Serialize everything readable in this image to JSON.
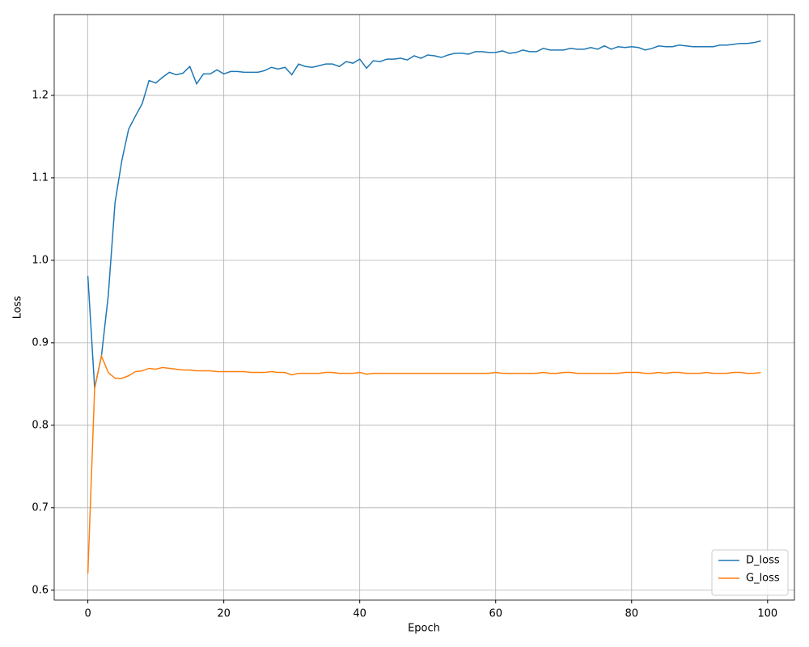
{
  "chart_data": {
    "type": "line",
    "x_label": "Epoch",
    "y_label": "Loss",
    "x": [
      0,
      1,
      2,
      3,
      4,
      5,
      6,
      7,
      8,
      9,
      10,
      11,
      12,
      13,
      14,
      15,
      16,
      17,
      18,
      19,
      20,
      21,
      22,
      23,
      24,
      25,
      26,
      27,
      28,
      29,
      30,
      31,
      32,
      33,
      34,
      35,
      36,
      37,
      38,
      39,
      40,
      41,
      42,
      43,
      44,
      45,
      46,
      47,
      48,
      49,
      50,
      51,
      52,
      53,
      54,
      55,
      56,
      57,
      58,
      59,
      60,
      61,
      62,
      63,
      64,
      65,
      66,
      67,
      68,
      69,
      70,
      71,
      72,
      73,
      74,
      75,
      76,
      77,
      78,
      79,
      80,
      81,
      82,
      83,
      84,
      85,
      86,
      87,
      88,
      89,
      90,
      91,
      92,
      93,
      94,
      95,
      96,
      97,
      98,
      99
    ],
    "series": [
      {
        "name": "D_loss",
        "color": "#1f77b4",
        "values": [
          0.981,
          0.845,
          0.884,
          0.957,
          1.07,
          1.121,
          1.159,
          1.175,
          1.19,
          1.218,
          1.215,
          1.222,
          1.228,
          1.225,
          1.227,
          1.235,
          1.214,
          1.226,
          1.226,
          1.231,
          1.226,
          1.229,
          1.229,
          1.228,
          1.228,
          1.228,
          1.23,
          1.234,
          1.232,
          1.234,
          1.225,
          1.238,
          1.235,
          1.234,
          1.236,
          1.238,
          1.238,
          1.235,
          1.241,
          1.239,
          1.244,
          1.233,
          1.242,
          1.241,
          1.244,
          1.244,
          1.245,
          1.243,
          1.248,
          1.245,
          1.249,
          1.248,
          1.246,
          1.249,
          1.251,
          1.251,
          1.25,
          1.253,
          1.253,
          1.252,
          1.252,
          1.254,
          1.251,
          1.252,
          1.255,
          1.253,
          1.253,
          1.257,
          1.255,
          1.255,
          1.255,
          1.257,
          1.256,
          1.256,
          1.258,
          1.256,
          1.26,
          1.256,
          1.259,
          1.258,
          1.259,
          1.258,
          1.255,
          1.257,
          1.26,
          1.259,
          1.259,
          1.261,
          1.26,
          1.259,
          1.259,
          1.259,
          1.259,
          1.261,
          1.261,
          1.262,
          1.263,
          1.263,
          1.264,
          1.266
        ]
      },
      {
        "name": "G_loss",
        "color": "#ff7f0e",
        "values": [
          0.62,
          0.845,
          0.884,
          0.864,
          0.857,
          0.857,
          0.86,
          0.865,
          0.866,
          0.869,
          0.868,
          0.87,
          0.869,
          0.868,
          0.867,
          0.867,
          0.866,
          0.866,
          0.866,
          0.865,
          0.865,
          0.865,
          0.865,
          0.865,
          0.864,
          0.864,
          0.864,
          0.865,
          0.864,
          0.864,
          0.861,
          0.863,
          0.863,
          0.863,
          0.863,
          0.864,
          0.864,
          0.863,
          0.863,
          0.863,
          0.864,
          0.862,
          0.863,
          0.863,
          0.863,
          0.863,
          0.863,
          0.863,
          0.863,
          0.863,
          0.863,
          0.863,
          0.863,
          0.863,
          0.863,
          0.863,
          0.863,
          0.863,
          0.863,
          0.863,
          0.864,
          0.863,
          0.863,
          0.863,
          0.863,
          0.863,
          0.863,
          0.864,
          0.863,
          0.863,
          0.864,
          0.864,
          0.863,
          0.863,
          0.863,
          0.863,
          0.863,
          0.863,
          0.863,
          0.864,
          0.864,
          0.864,
          0.863,
          0.863,
          0.864,
          0.863,
          0.864,
          0.864,
          0.863,
          0.863,
          0.863,
          0.864,
          0.863,
          0.863,
          0.863,
          0.864,
          0.864,
          0.863,
          0.863,
          0.864
        ]
      }
    ],
    "xlim": [
      -4.95,
      103.95
    ],
    "xticks": [
      0,
      20,
      40,
      60,
      80,
      100
    ],
    "ylim": [
      0.588,
      1.298
    ],
    "yticks": [
      0.6,
      0.7,
      0.8,
      0.9,
      {
        "value": 1,
        "label": "1.0"
      },
      1.1,
      1.2
    ],
    "grid": true,
    "legend": "lower right"
  }
}
